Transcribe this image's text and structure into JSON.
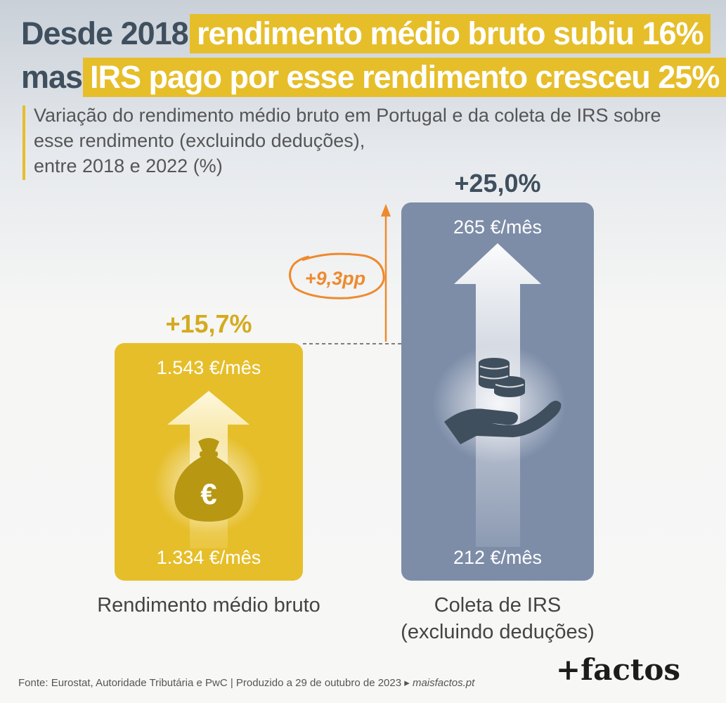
{
  "headline": {
    "line1_plain": "Desde 2018,",
    "line1_highlight": "rendimento médio bruto subiu 16%",
    "line2_plain": "mas",
    "line2_highlight": "IRS pago por esse rendimento cresceu 25%"
  },
  "subtitle": {
    "line1": "Variação do rendimento médio bruto em Portugal e da coleta de IRS sobre",
    "line2": "esse rendimento (excluindo deduções),",
    "line3": "entre 2018 e 2022 (%)"
  },
  "chart_data": {
    "type": "bar",
    "title": "Variação do rendimento médio bruto em Portugal e da coleta de IRS sobre esse rendimento (excluindo deduções), entre 2018 e 2022 (%)",
    "categories": [
      "Rendimento médio bruto",
      "Coleta de IRS (excluindo deduções)"
    ],
    "series": [
      {
        "values": [
          15.7,
          25.0
        ]
      }
    ],
    "start_values": [
      "1.334 €/mês",
      "212 €/mês"
    ],
    "end_values": [
      "1.543 €/mês",
      "265 €/mês"
    ],
    "difference_label": "+9,3pp",
    "pct_labels": [
      "+15,7%",
      "+25,0%"
    ],
    "colors": [
      "#e6be2a",
      "#7d8da8"
    ],
    "annotation_color": "#ee8a2e"
  },
  "bars": {
    "income": {
      "label": "Rendimento médio bruto",
      "pct": "+15,7%",
      "top_value": "1.543 €/mês",
      "bottom_value": "1.334 €/mês",
      "icon": "money-bag-euro-icon",
      "icon_symbol": "€"
    },
    "tax": {
      "label_line1": "Coleta de IRS",
      "label_line2": "(excluindo deduções)",
      "pct": "+25,0%",
      "top_value": "265 €/mês",
      "bottom_value": "212 €/mês",
      "icon": "hand-coins-icon"
    }
  },
  "annotation": {
    "diff": "+9,3pp"
  },
  "footer": {
    "source": "Fonte: Eurostat, Autoridade Tributária e PwC | Produzido a 29 de outubro de 2023 ▸",
    "site": "maisfactos.pt",
    "logo": "+factos"
  },
  "colors": {
    "yellow": "#e6be2a",
    "blue_grey": "#7d8da8",
    "dark_navy": "#3f4f5e",
    "orange": "#ee8a2e"
  }
}
